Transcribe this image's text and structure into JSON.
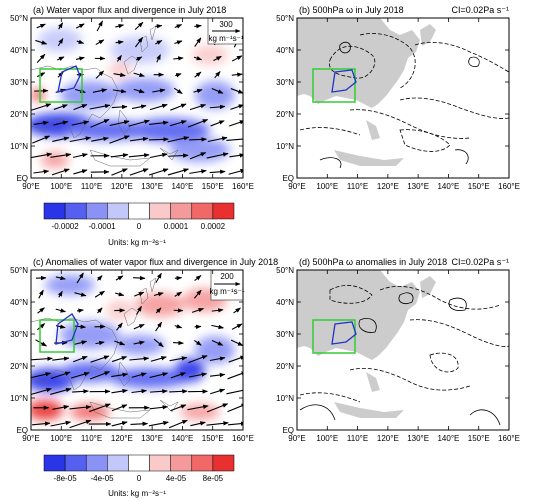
{
  "chart_data": [
    {
      "type": "heatmap",
      "panel": "a",
      "title": "(a) Water vapor flux and divergence in July 2018",
      "x_ticks": [
        "90°E",
        "100°E",
        "110°E",
        "120°E",
        "130°E",
        "140°E",
        "150°E",
        "160°E"
      ],
      "y_ticks": [
        "EQ",
        "10°N",
        "20°N",
        "30°N",
        "40°N",
        "50°N"
      ],
      "xlim": [
        90,
        160
      ],
      "ylim": [
        0,
        50
      ],
      "reference_vector": {
        "value": "300",
        "units": "kg m⁻¹s⁻¹"
      },
      "colorbar": {
        "labels": [
          "-0.0002",
          "-0.0001",
          "0",
          "0.0001",
          "0.0002"
        ],
        "units": "Units: kg m⁻²s⁻¹",
        "colors": [
          "#2a35e8",
          "#5560f0",
          "#8a93f5",
          "#c3c8fa",
          "#ffffff",
          "#fac9c9",
          "#f59a9a",
          "#f06868",
          "#e83030"
        ]
      },
      "boxes": [
        {
          "color": "#33cc33",
          "lon": [
            93,
            103
          ],
          "lat": [
            26,
            35
          ]
        },
        {
          "color": "#2233cc",
          "lon": [
            97,
            106
          ],
          "lat": [
            27,
            34
          ]
        }
      ]
    },
    {
      "type": "heatmap",
      "panel": "b",
      "title": "(b) 500hPa  ω  in July 2018",
      "annotation": "CI=0.02Pa s⁻¹",
      "x_ticks": [
        "90°E",
        "100°E",
        "110°E",
        "120°E",
        "130°E",
        "140°E",
        "150°E",
        "160°E"
      ],
      "y_ticks": [
        "EQ",
        "10°N",
        "20°N",
        "30°N",
        "40°N",
        "50°N"
      ],
      "xlim": [
        90,
        160
      ],
      "ylim": [
        0,
        50
      ],
      "boxes": [
        {
          "color": "#33cc33",
          "lon": [
            93,
            103
          ],
          "lat": [
            26,
            35
          ]
        },
        {
          "color": "#2233cc",
          "lon": [
            97,
            106
          ],
          "lat": [
            27,
            34
          ]
        }
      ]
    },
    {
      "type": "heatmap",
      "panel": "c",
      "title": "(c) Anomalies of water vapor flux and divergence in July 2018",
      "x_ticks": [
        "90°E",
        "100°E",
        "110°E",
        "120°E",
        "130°E",
        "140°E",
        "150°E",
        "160°E"
      ],
      "y_ticks": [
        "EQ",
        "10°N",
        "20°N",
        "30°N",
        "40°N",
        "50°N"
      ],
      "xlim": [
        90,
        160
      ],
      "ylim": [
        0,
        50
      ],
      "reference_vector": {
        "value": "200",
        "units": "kg m⁻¹s⁻¹"
      },
      "colorbar": {
        "labels": [
          "-8e-05",
          "-4e-05",
          "0",
          "4e-05",
          "8e-05"
        ],
        "units": "Units: kg m⁻²s⁻¹",
        "colors": [
          "#2a35e8",
          "#5560f0",
          "#8a93f5",
          "#c3c8fa",
          "#ffffff",
          "#fac9c9",
          "#f59a9a",
          "#f06868",
          "#e83030"
        ]
      },
      "boxes": [
        {
          "color": "#33cc33",
          "lon": [
            93,
            103
          ],
          "lat": [
            26,
            35
          ]
        },
        {
          "color": "#2233cc",
          "lon": [
            97,
            106
          ],
          "lat": [
            27,
            34
          ]
        }
      ]
    },
    {
      "type": "heatmap",
      "panel": "d",
      "title": "(d) 500hPa  ω  anomalies in July 2018",
      "annotation": "CI=0.02Pa s⁻¹",
      "x_ticks": [
        "90°E",
        "100°E",
        "110°E",
        "120°E",
        "130°E",
        "140°E",
        "150°E",
        "160°E"
      ],
      "y_ticks": [
        "EQ",
        "10°N",
        "20°N",
        "30°N",
        "40°N",
        "50°N"
      ],
      "xlim": [
        90,
        160
      ],
      "ylim": [
        0,
        50
      ],
      "boxes": [
        {
          "color": "#33cc33",
          "lon": [
            93,
            103
          ],
          "lat": [
            26,
            35
          ]
        },
        {
          "color": "#2233cc",
          "lon": [
            97,
            106
          ],
          "lat": [
            27,
            34
          ]
        }
      ]
    }
  ]
}
